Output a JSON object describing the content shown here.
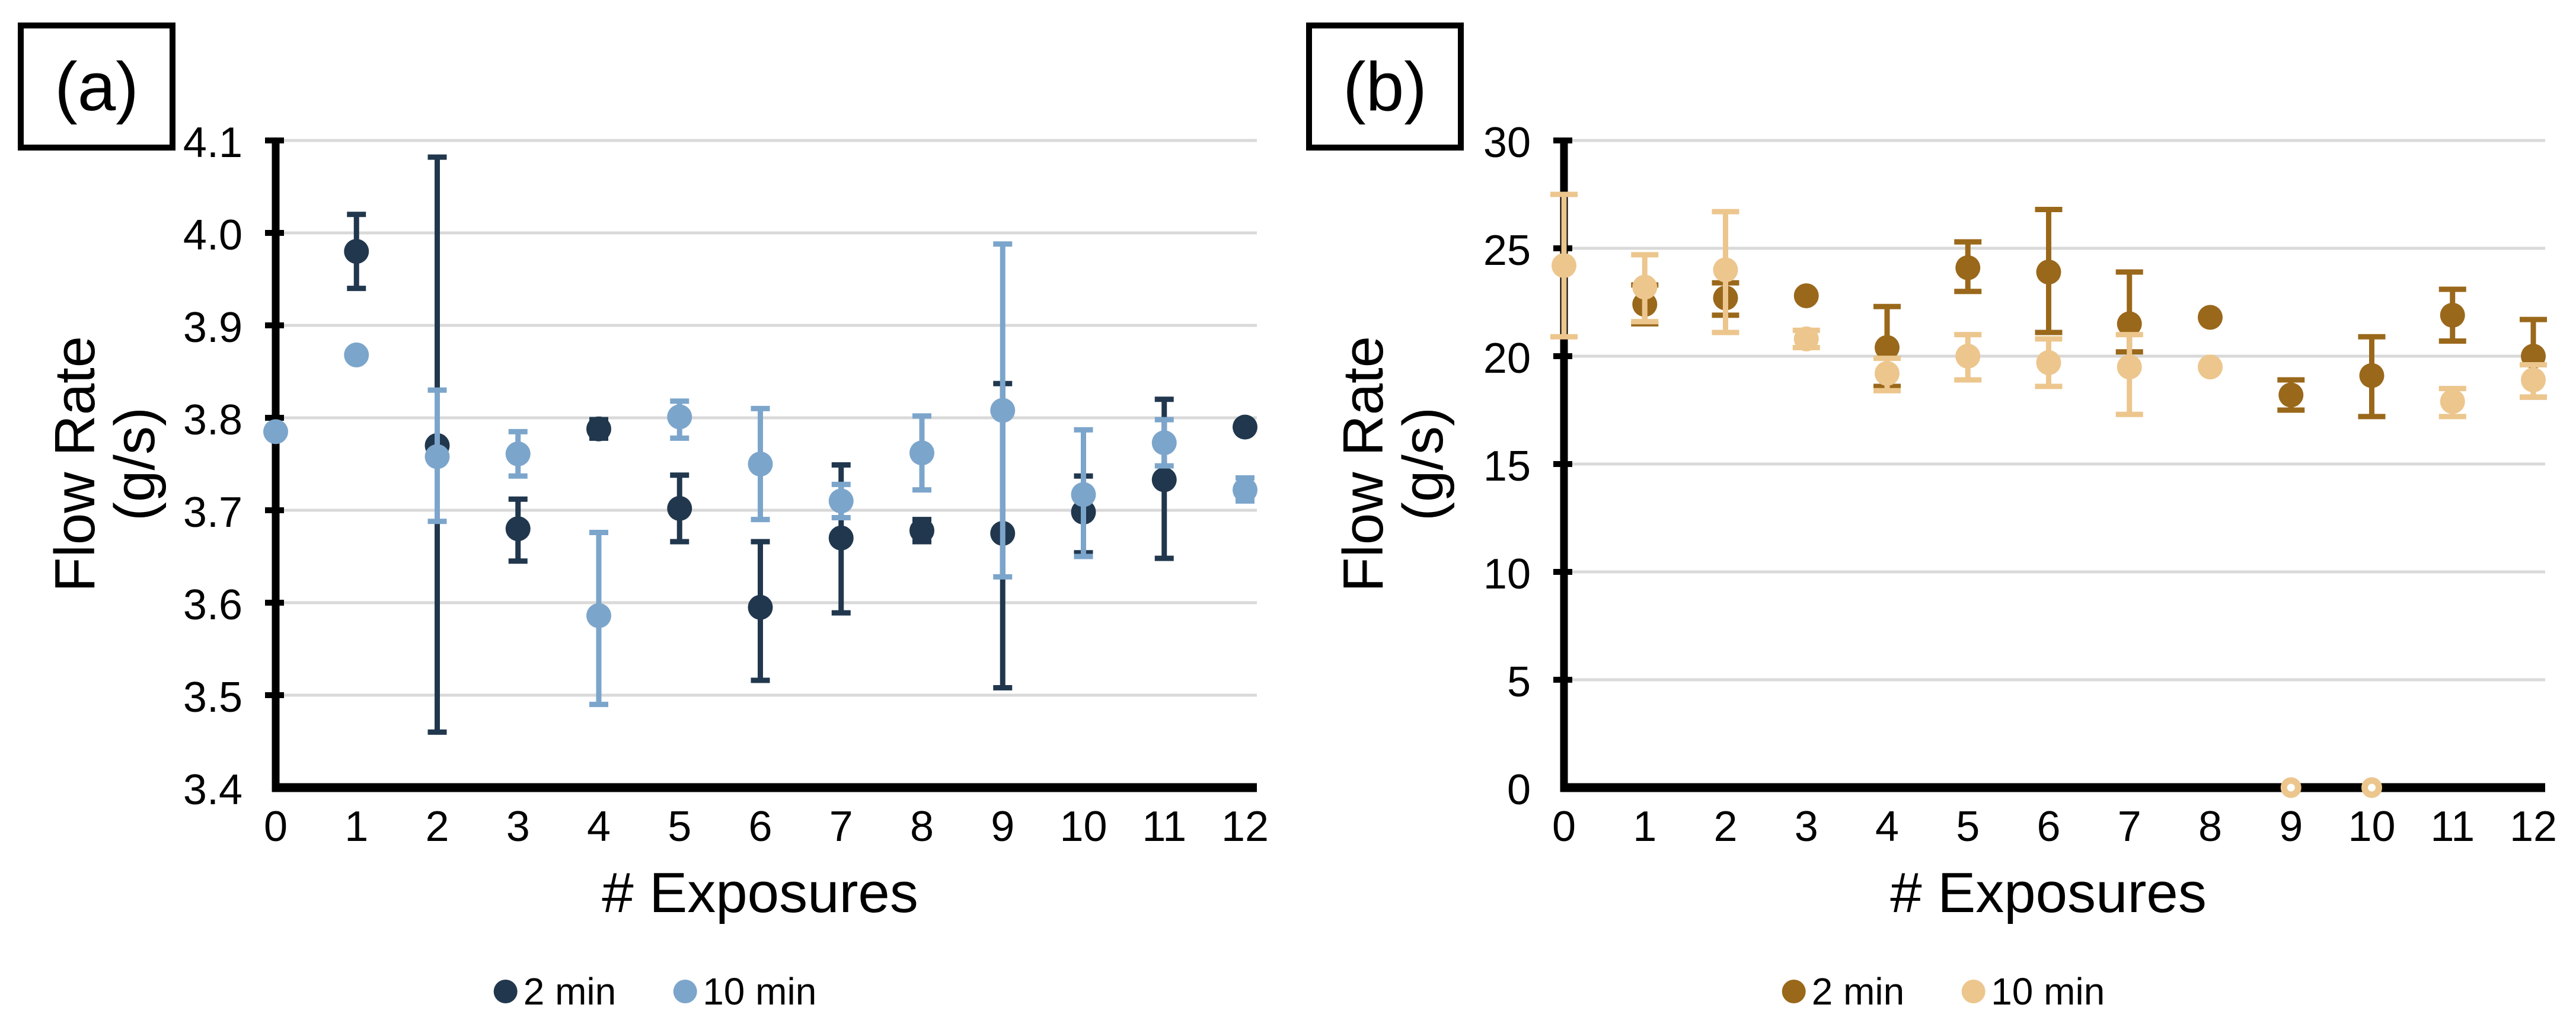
{
  "figure_background": "#ffffff",
  "chart_data": [
    {
      "tag": "(a)",
      "type": "scatter",
      "xlabel": "# Exposures",
      "ylabel_lines": [
        "Flow Rate",
        "(g/s)"
      ],
      "x_ticks": [
        "0",
        "1",
        "2",
        "3",
        "4",
        "5",
        "6",
        "7",
        "8",
        "9",
        "10",
        "11",
        "12"
      ],
      "ylim": [
        3.4,
        4.1
      ],
      "ytick_step": 0.1,
      "ytick_decimals": 1,
      "grid": true,
      "legend_position": "bottom",
      "colors": {
        "grid": "#D9D9D9",
        "axis": "#000000"
      },
      "series": [
        {
          "name": "2 min",
          "color": "#21374D",
          "points": [
            {
              "x": 1,
              "y": 3.98,
              "lo": 3.94,
              "hi": 4.02
            },
            {
              "x": 2,
              "y": 3.77,
              "lo": 3.46,
              "hi": 4.082
            },
            {
              "x": 3,
              "y": 3.68,
              "lo": 3.645,
              "hi": 3.712
            },
            {
              "x": 4,
              "y": 3.788,
              "lo": 3.778,
              "hi": 3.798
            },
            {
              "x": 5,
              "y": 3.702,
              "lo": 3.666,
              "hi": 3.738
            },
            {
              "x": 6,
              "y": 3.595,
              "lo": 3.516,
              "hi": 3.666
            },
            {
              "x": 7,
              "y": 3.67,
              "lo": 3.589,
              "hi": 3.749
            },
            {
              "x": 8,
              "y": 3.678,
              "lo": 3.666,
              "hi": 3.69
            },
            {
              "x": 9,
              "y": 3.675,
              "lo": 3.508,
              "hi": 3.837
            },
            {
              "x": 10,
              "y": 3.698,
              "lo": 3.654,
              "hi": 3.737
            },
            {
              "x": 11,
              "y": 3.733,
              "lo": 3.648,
              "hi": 3.82
            },
            {
              "x": 12,
              "y": 3.79
            }
          ]
        },
        {
          "name": "10 min",
          "color": "#7CA5CB",
          "points": [
            {
              "x": 0,
              "y": 3.785
            },
            {
              "x": 1,
              "y": 3.868
            },
            {
              "x": 2,
              "y": 3.758,
              "lo": 3.688,
              "hi": 3.83
            },
            {
              "x": 3,
              "y": 3.761,
              "lo": 3.737,
              "hi": 3.785
            },
            {
              "x": 4,
              "y": 3.586,
              "lo": 3.49,
              "hi": 3.676
            },
            {
              "x": 5,
              "y": 3.801,
              "lo": 3.778,
              "hi": 3.818
            },
            {
              "x": 6,
              "y": 3.75,
              "lo": 3.69,
              "hi": 3.81
            },
            {
              "x": 7,
              "y": 3.71,
              "lo": 3.692,
              "hi": 3.728
            },
            {
              "x": 8,
              "y": 3.762,
              "lo": 3.722,
              "hi": 3.802
            },
            {
              "x": 9,
              "y": 3.808,
              "lo": 3.628,
              "hi": 3.988
            },
            {
              "x": 10,
              "y": 3.717,
              "lo": 3.65,
              "hi": 3.787
            },
            {
              "x": 11,
              "y": 3.773,
              "lo": 3.748,
              "hi": 3.798
            },
            {
              "x": 12,
              "y": 3.722,
              "lo": 3.71,
              "hi": 3.735
            }
          ]
        }
      ]
    },
    {
      "tag": "(b)",
      "type": "scatter",
      "xlabel": "# Exposures",
      "ylabel_lines": [
        "Flow Rate",
        "(g/s)"
      ],
      "x_ticks": [
        "0",
        "1",
        "2",
        "3",
        "4",
        "5",
        "6",
        "7",
        "8",
        "9",
        "10",
        "11",
        "12"
      ],
      "ylim": [
        0,
        30
      ],
      "ytick_step": 5,
      "ytick_decimals": 0,
      "grid": true,
      "legend_position": "bottom",
      "colors": {
        "grid": "#D9D9D9",
        "axis": "#000000"
      },
      "series": [
        {
          "name": "2 min",
          "color": "#9A681B",
          "points": [
            {
              "x": 1,
              "y": 22.4,
              "lo": 21.5,
              "hi": 23.3
            },
            {
              "x": 2,
              "y": 22.7,
              "lo": 21.9,
              "hi": 23.4
            },
            {
              "x": 3,
              "y": 22.8
            },
            {
              "x": 4,
              "y": 20.4,
              "lo": 18.6,
              "hi": 22.3
            },
            {
              "x": 5,
              "y": 24.1,
              "lo": 23.0,
              "hi": 25.3
            },
            {
              "x": 6,
              "y": 23.9,
              "lo": 21.1,
              "hi": 26.8
            },
            {
              "x": 7,
              "y": 21.5,
              "lo": 20.2,
              "hi": 23.9
            },
            {
              "x": 8,
              "y": 21.8
            },
            {
              "x": 9,
              "y": 18.2,
              "lo": 17.5,
              "hi": 18.9
            },
            {
              "x": 10,
              "y": 19.1,
              "lo": 17.2,
              "hi": 20.9
            },
            {
              "x": 11,
              "y": 21.9,
              "lo": 20.7,
              "hi": 23.1
            },
            {
              "x": 12,
              "y": 20.0,
              "lo": 18.1,
              "hi": 21.7
            }
          ]
        },
        {
          "name": "10 min",
          "color": "#ECC68D",
          "points": [
            {
              "x": 0,
              "y": 24.2,
              "lo": 20.9,
              "hi": 27.5
            },
            {
              "x": 1,
              "y": 23.2,
              "lo": 21.6,
              "hi": 24.7
            },
            {
              "x": 2,
              "y": 24.0,
              "lo": 21.1,
              "hi": 26.7
            },
            {
              "x": 3,
              "y": 20.8,
              "lo": 20.4,
              "hi": 21.2
            },
            {
              "x": 4,
              "y": 19.2,
              "lo": 18.4,
              "hi": 19.9
            },
            {
              "x": 5,
              "y": 20.0,
              "lo": 18.9,
              "hi": 21.0
            },
            {
              "x": 6,
              "y": 19.7,
              "lo": 18.6,
              "hi": 20.8
            },
            {
              "x": 7,
              "y": 19.5,
              "lo": 17.3,
              "hi": 21.0
            },
            {
              "x": 8,
              "y": 19.5
            },
            {
              "x": 9,
              "y": 0,
              "ring": true
            },
            {
              "x": 10,
              "y": 0,
              "ring": true
            },
            {
              "x": 11,
              "y": 17.9,
              "lo": 17.2,
              "hi": 18.5
            },
            {
              "x": 12,
              "y": 18.9,
              "lo": 18.1,
              "hi": 19.6
            }
          ]
        }
      ]
    }
  ]
}
